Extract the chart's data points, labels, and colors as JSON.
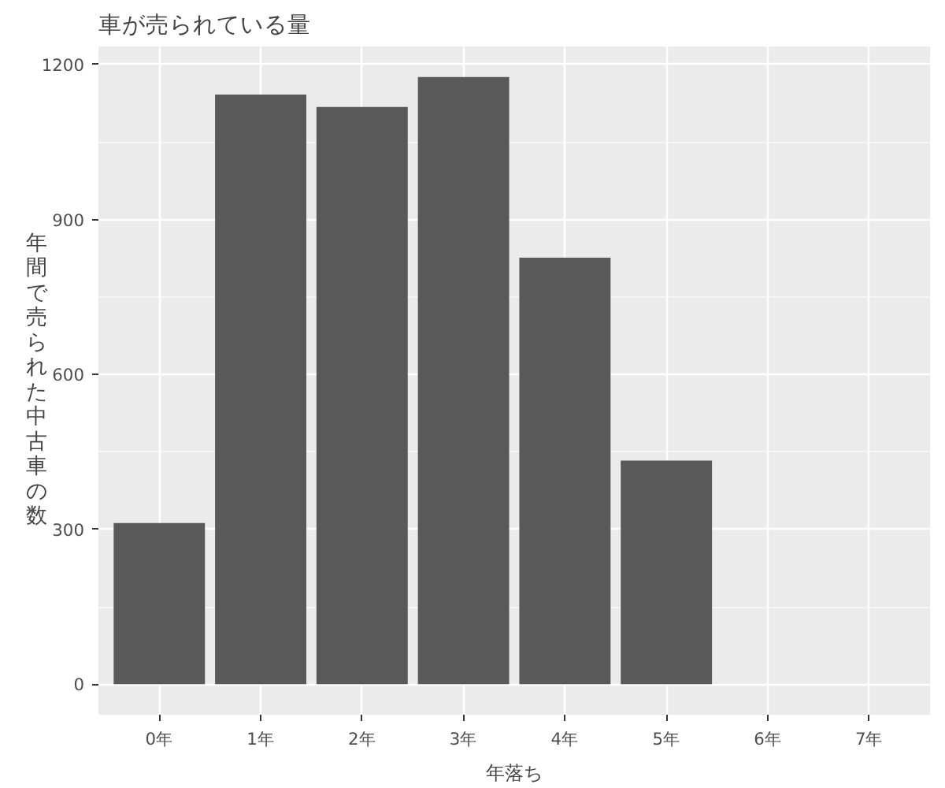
{
  "chart_data": {
    "type": "bar",
    "title": "車が売られている量",
    "xlabel": "年落ち",
    "ylabel": "年間で売られた中古車の数",
    "categories": [
      "0年",
      "1年",
      "2年",
      "3年",
      "4年",
      "5年",
      "6年",
      "7年"
    ],
    "values": [
      312,
      1142,
      1118,
      1176,
      826,
      433,
      null,
      null
    ],
    "color": "#595959",
    "ylim": [
      -59,
      1235
    ],
    "yticks": [
      0,
      300,
      600,
      900,
      1200
    ],
    "grid": true
  }
}
